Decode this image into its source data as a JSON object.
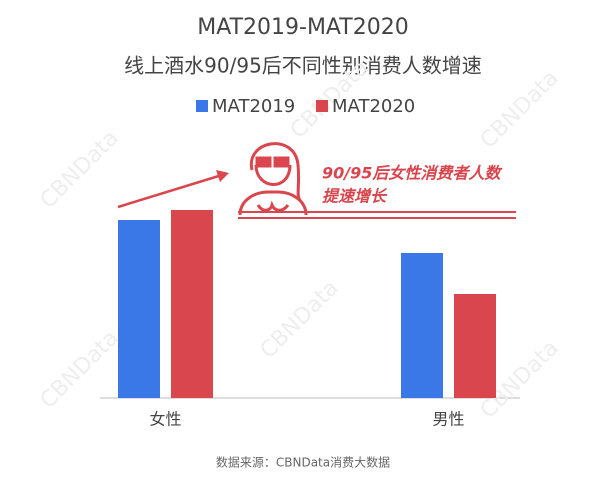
{
  "chart_data": {
    "type": "bar",
    "title": "MAT2019-MAT2020",
    "subtitle": "线上酒水90/95后不同性别消费人数增速",
    "categories": [
      "女性",
      "男性"
    ],
    "series": [
      {
        "name": "MAT2019",
        "color": "#3b78e7",
        "values": [
          178,
          145
        ]
      },
      {
        "name": "MAT2020",
        "color": "#d9464d",
        "values": [
          188,
          104
        ]
      }
    ],
    "ylim": [
      0,
      200
    ],
    "annotation": [
      "90/95后女性消费者人数",
      "提速增长"
    ],
    "source": "数据来源：CBNData消费大数据",
    "watermark": "CBNData"
  }
}
